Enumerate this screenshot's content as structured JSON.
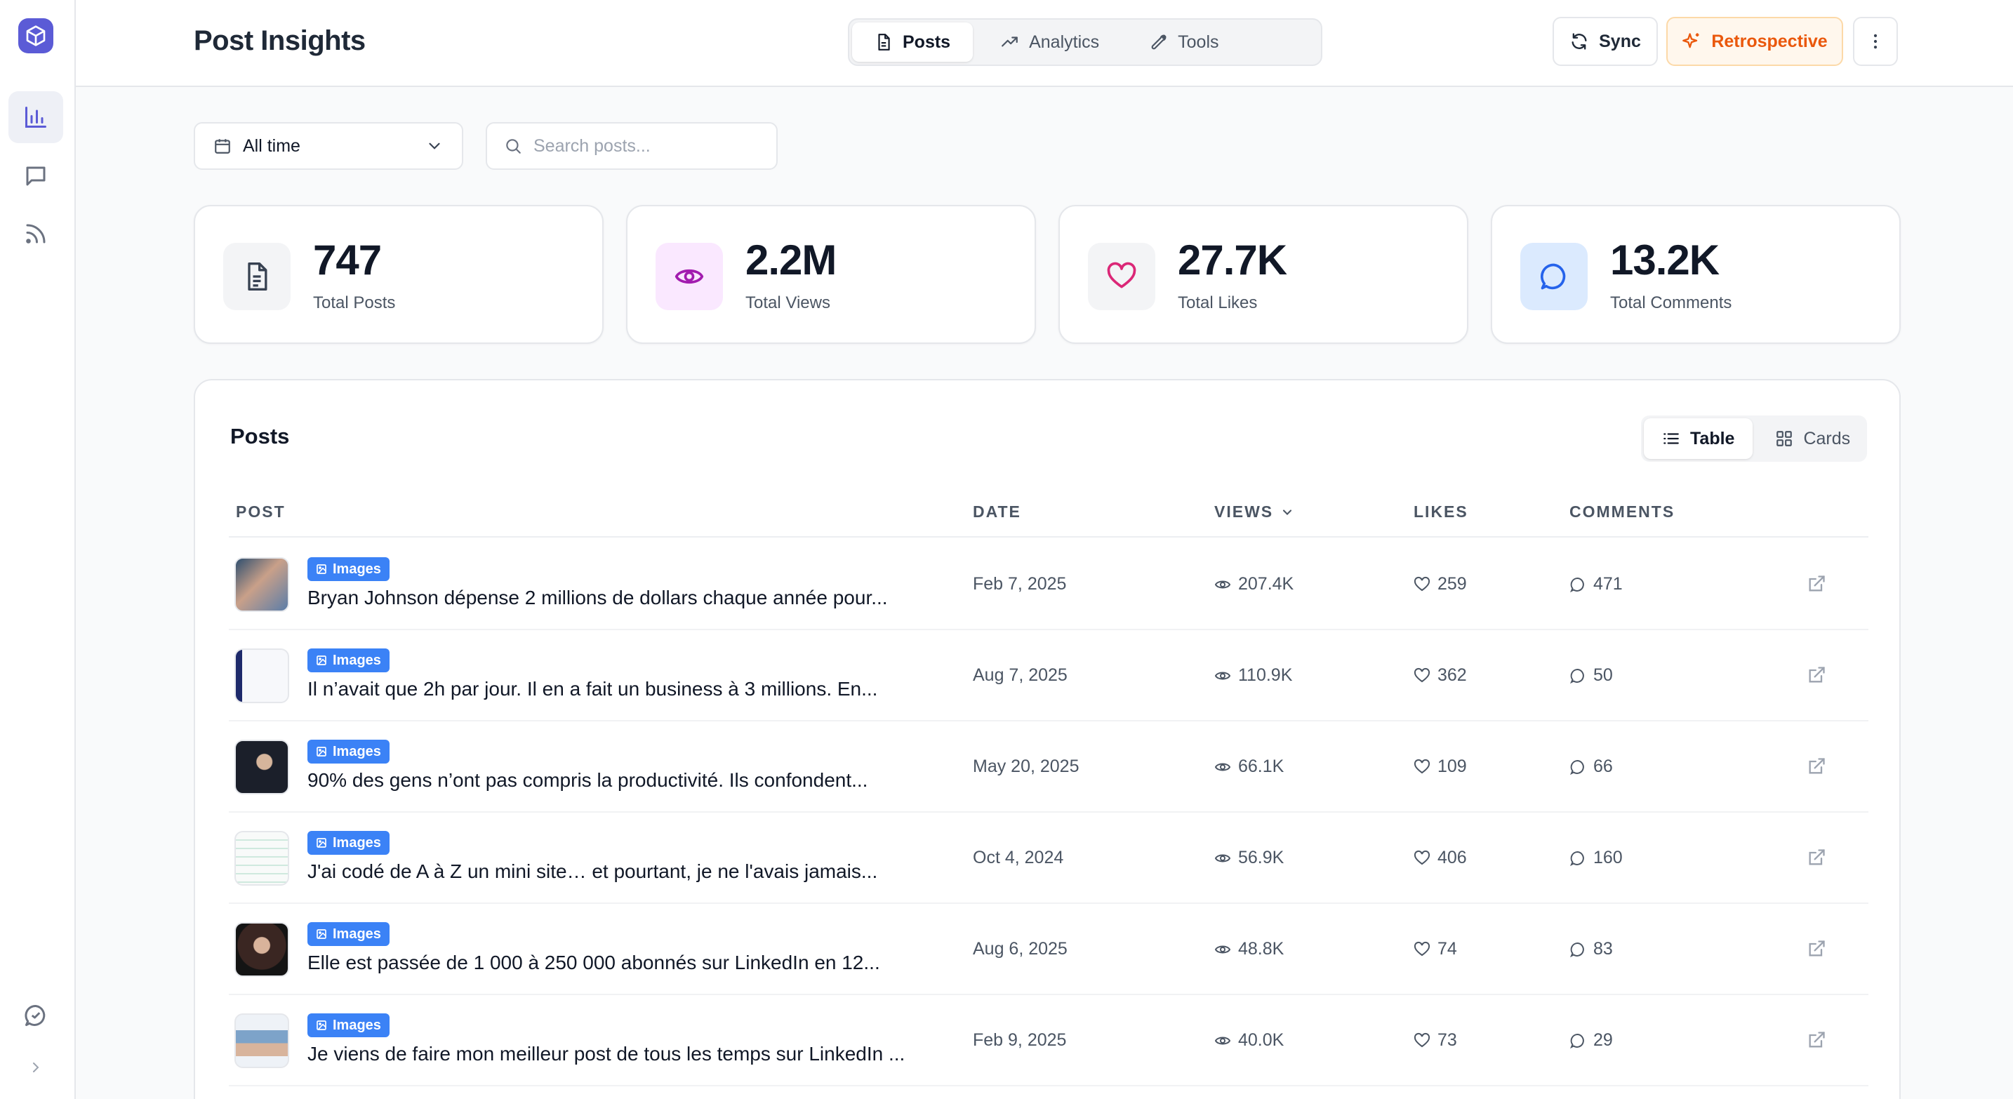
{
  "header": {
    "title": "Post Insights",
    "tabs": [
      {
        "label": "Posts",
        "icon": "file-text-icon",
        "active": true
      },
      {
        "label": "Analytics",
        "icon": "trending-up-icon",
        "active": false
      },
      {
        "label": "Tools",
        "icon": "wrench-icon",
        "active": false
      }
    ],
    "sync_label": "Sync",
    "retro_label": "Retrospective"
  },
  "sidebar": {
    "items": [
      {
        "icon": "bar-chart-icon",
        "active": true
      },
      {
        "icon": "message-square-icon",
        "active": false
      },
      {
        "icon": "rss-icon",
        "active": false
      }
    ],
    "bottom": [
      "chat-bubble-icon",
      "chevron-right-icon"
    ]
  },
  "filters": {
    "date_range": "All time",
    "search_placeholder": "Search posts..."
  },
  "stats": [
    {
      "value": "747",
      "label": "Total Posts",
      "icon": "document-icon",
      "color": "#f3f4f6"
    },
    {
      "value": "2.2M",
      "label": "Total Views",
      "icon": "eye-icon",
      "color": "#fae8ff"
    },
    {
      "value": "27.7K",
      "label": "Total Likes",
      "icon": "heart-icon",
      "color": "#f3f4f6"
    },
    {
      "value": "13.2K",
      "label": "Total Comments",
      "icon": "message-circle-icon",
      "color": "#dbeafe"
    }
  ],
  "posts": {
    "title": "Posts",
    "view_toggle": {
      "table": "Table",
      "cards": "Cards",
      "active": "table"
    },
    "columns": {
      "post": "POST",
      "date": "DATE",
      "views": "VIEWS",
      "likes": "LIKES",
      "comments": "COMMENTS"
    },
    "rows": [
      {
        "badge": "Images",
        "text": "Bryan Johnson dépense 2 millions de dollars chaque année pour...",
        "date": "Feb 7, 2025",
        "views": "207.4K",
        "likes": "259",
        "comments": "471"
      },
      {
        "badge": "Images",
        "text": "Il n’avait que 2h par jour. Il en a fait un business à 3 millions. En...",
        "date": "Aug 7, 2025",
        "views": "110.9K",
        "likes": "362",
        "comments": "50"
      },
      {
        "badge": "Images",
        "text": "90% des gens n’ont pas compris la productivité. Ils confondent...",
        "date": "May 20, 2025",
        "views": "66.1K",
        "likes": "109",
        "comments": "66"
      },
      {
        "badge": "Images",
        "text": "J'ai codé de A à Z un mini site… et pourtant, je ne l'avais jamais...",
        "date": "Oct 4, 2024",
        "views": "56.9K",
        "likes": "406",
        "comments": "160"
      },
      {
        "badge": "Images",
        "text": "Elle est passée de 1 000 à 250 000 abonnés sur LinkedIn en 12...",
        "date": "Aug 6, 2025",
        "views": "48.8K",
        "likes": "74",
        "comments": "83"
      },
      {
        "badge": "Images",
        "text": "Je viens de faire mon meilleur post de tous les temps sur LinkedIn ...",
        "date": "Feb 9, 2025",
        "views": "40.0K",
        "likes": "73",
        "comments": "29"
      }
    ]
  }
}
